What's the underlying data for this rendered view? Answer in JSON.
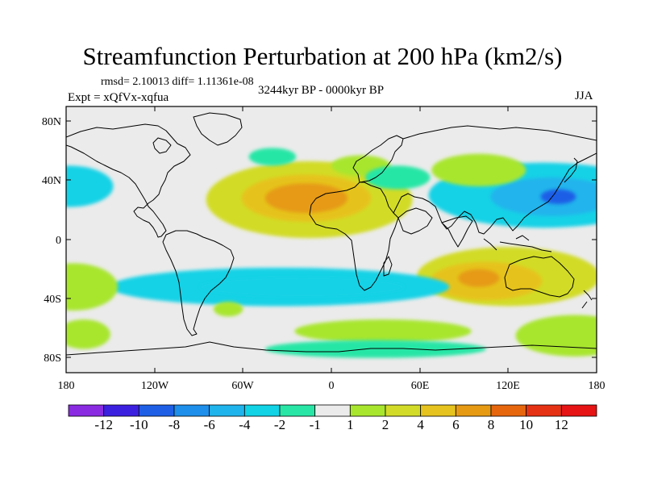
{
  "title": "Streamfunction Perturbation at 200 hPa (km2/s)",
  "stats_text": "rmsd= 2.10013 diff= 1.11361e-08",
  "period_text": "3244kyr BP - 0000kyr BP",
  "experiment_text": "Expt = xQfVx-xqfua",
  "season_text": "JJA",
  "axes": {
    "lon_ticks": [
      "180",
      "120W",
      "60W",
      "0",
      "60E",
      "120E",
      "180"
    ],
    "lat_ticks": [
      "80N",
      "40N",
      "0",
      "40S",
      "80S"
    ]
  },
  "colorbar": {
    "labels": [
      "-12",
      "-10",
      "-8",
      "-6",
      "-4",
      "-2",
      "-1",
      "1",
      "2",
      "4",
      "6",
      "8",
      "10",
      "12"
    ],
    "colors": [
      "#8a2be2",
      "#3c20e0",
      "#1e5fe6",
      "#1e8fea",
      "#20b4ec",
      "#12d2e6",
      "#28e6a6",
      "#ebebeb",
      "#a8e62d",
      "#d2dc28",
      "#e6c31e",
      "#e69a14",
      "#e6660e",
      "#e63214",
      "#e61414"
    ]
  },
  "chart_data": {
    "type": "heatmap",
    "projection": "cylindrical-equidistant",
    "variable": "streamfunction perturbation",
    "level_hPa": 200,
    "units": "km2/s",
    "lon_range": [
      -180,
      180
    ],
    "lat_range": [
      -90,
      90
    ],
    "contour_levels": [
      -12,
      -10,
      -8,
      -6,
      -4,
      -2,
      -1,
      1,
      2,
      4,
      6,
      8,
      10,
      12
    ],
    "anomalies": [
      {
        "lon": -15,
        "lat": 27,
        "rx": 70,
        "ry": 26,
        "value": 3
      },
      {
        "lon": -17,
        "lat": 28,
        "rx": 44,
        "ry": 16,
        "value": 4.5
      },
      {
        "lon": -17,
        "lat": 28,
        "rx": 28,
        "ry": 10,
        "value": 6.5
      },
      {
        "lon": 144,
        "lat": 30,
        "rx": 78,
        "ry": 22,
        "value": -3
      },
      {
        "lon": 150,
        "lat": 29,
        "rx": 42,
        "ry": 13,
        "value": -5
      },
      {
        "lon": 154,
        "lat": 29,
        "rx": 12,
        "ry": 5,
        "value": -9
      },
      {
        "lon": 120,
        "lat": -25,
        "rx": 62,
        "ry": 20,
        "value": 3
      },
      {
        "lon": 105,
        "lat": -28,
        "rx": 38,
        "ry": 13,
        "value": 5
      },
      {
        "lon": 100,
        "lat": -26,
        "rx": 14,
        "ry": 6,
        "value": 7
      },
      {
        "lon": -35,
        "lat": -32,
        "rx": 115,
        "ry": 13,
        "value": -2
      },
      {
        "lon": -20,
        "lat": -32,
        "rx": 70,
        "ry": 7,
        "value": -3
      },
      {
        "lon": 100,
        "lat": 47,
        "rx": 32,
        "ry": 11,
        "value": 1.5
      },
      {
        "lon": -178,
        "lat": 36,
        "rx": 30,
        "ry": 14,
        "value": -2
      },
      {
        "lon": -175,
        "lat": -32,
        "rx": 30,
        "ry": 16,
        "value": 1.5
      },
      {
        "lon": 165,
        "lat": -65,
        "rx": 40,
        "ry": 14,
        "value": 1.5
      },
      {
        "lon": 35,
        "lat": -62,
        "rx": 60,
        "ry": 8,
        "value": 1.5
      },
      {
        "lon": 30,
        "lat": -74,
        "rx": 75,
        "ry": 6,
        "value": -1.5
      },
      {
        "lon": -168,
        "lat": -64,
        "rx": 18,
        "ry": 10,
        "value": 1.5
      },
      {
        "lon": -40,
        "lat": 56,
        "rx": 16,
        "ry": 6,
        "value": -1.5
      },
      {
        "lon": 20,
        "lat": 50,
        "rx": 20,
        "ry": 7,
        "value": 1.5
      },
      {
        "lon": 45,
        "lat": 42,
        "rx": 22,
        "ry": 8,
        "value": -1.5
      },
      {
        "lon": -70,
        "lat": -47,
        "rx": 10,
        "ry": 5,
        "value": 1.5
      }
    ]
  }
}
